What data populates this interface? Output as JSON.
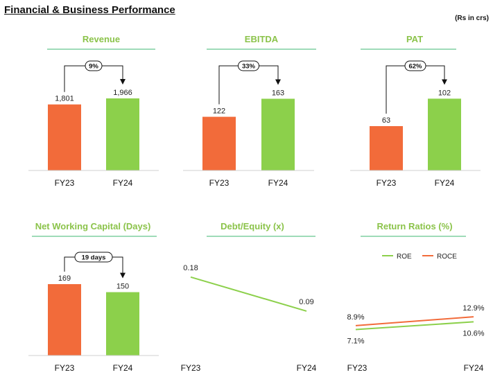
{
  "page": {
    "title": "Financial & Business Performance",
    "unit": "(Rs in crs)"
  },
  "colors": {
    "fy23": "#F26B3A",
    "fy24": "#8CD04B",
    "accent": "#8BC34A",
    "roe": "#8CD04B",
    "roce": "#F26B3A"
  },
  "chart_data": [
    {
      "type": "bar",
      "title": "Revenue",
      "categories": [
        "FY23",
        "FY24"
      ],
      "values": [
        1801,
        1966
      ],
      "value_labels": [
        "1,801",
        "1,966"
      ],
      "growth_label": "9%",
      "ylim": [
        0,
        2400
      ]
    },
    {
      "type": "bar",
      "title": "EBITDA",
      "categories": [
        "FY23",
        "FY24"
      ],
      "values": [
        122,
        163
      ],
      "value_labels": [
        "122",
        "163"
      ],
      "growth_label": "33%",
      "ylim": [
        0,
        200
      ]
    },
    {
      "type": "bar",
      "title": "PAT",
      "categories": [
        "FY23",
        "FY24"
      ],
      "values": [
        63,
        102
      ],
      "value_labels": [
        "63",
        "102"
      ],
      "growth_label": "62%",
      "ylim": [
        0,
        125
      ]
    },
    {
      "type": "bar",
      "title": "Net Working Capital (Days)",
      "categories": [
        "FY23",
        "FY24"
      ],
      "values": [
        169,
        150
      ],
      "value_labels": [
        "169",
        "150"
      ],
      "growth_label": "19 days",
      "ylim": [
        0,
        210
      ]
    },
    {
      "type": "line",
      "title": "Debt/Equity (x)",
      "categories": [
        "FY23",
        "FY24"
      ],
      "series": [
        {
          "values": [
            0.18,
            0.09
          ],
          "value_labels": [
            "0.18",
            "0.09"
          ]
        }
      ],
      "ylim": [
        0,
        0.22
      ]
    },
    {
      "type": "line",
      "title": "Return Ratios (%)",
      "categories": [
        "FY23",
        "FY24"
      ],
      "legend": "top",
      "series": [
        {
          "name": "ROE",
          "values": [
            7.1,
            10.6
          ],
          "value_labels": [
            "7.1%",
            "10.6%"
          ]
        },
        {
          "name": "ROCE",
          "values": [
            8.9,
            12.9
          ],
          "value_labels": [
            "8.9%",
            "12.9%"
          ]
        }
      ],
      "ylim": [
        0,
        30
      ]
    }
  ]
}
